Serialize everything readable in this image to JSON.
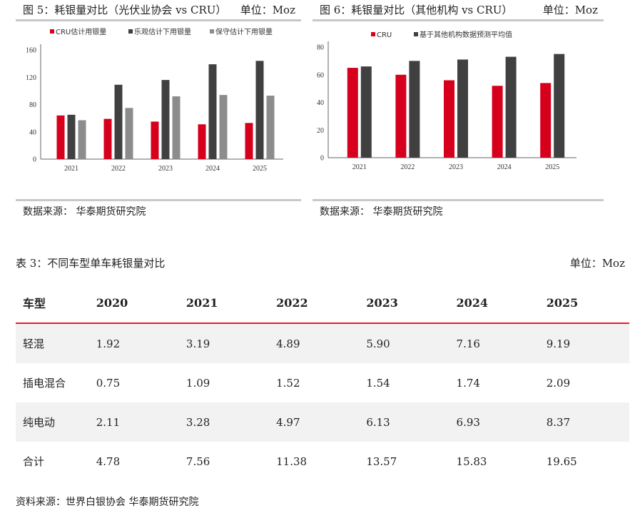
{
  "figure5": {
    "title": "图 5：耗银量对比（光伏业协会 vs CRU）",
    "unit": "单位：Moz",
    "source": "数据来源：  华泰期货研究院"
  },
  "figure6": {
    "title": "图 6：耗银量对比（其他机构 vs CRU）",
    "unit": "单位：Moz",
    "source": "数据来源：  华泰期货研究院"
  },
  "chart_data": [
    {
      "type": "bar",
      "categories": [
        "2021",
        "2022",
        "2023",
        "2024",
        "2025"
      ],
      "series": [
        {
          "name": "CRU估计用银量",
          "values": [
            64,
            59,
            55,
            51,
            53
          ]
        },
        {
          "name": "乐观估计下用银量",
          "values": [
            65,
            109,
            116,
            139,
            144
          ]
        },
        {
          "name": "保守估计下用银量",
          "values": [
            57,
            75,
            92,
            94,
            93
          ]
        }
      ],
      "colors": [
        "#d6001c",
        "#404040",
        "#8c8c8c"
      ],
      "yticks": [
        0,
        40,
        80,
        120,
        160
      ],
      "ylim": [
        0,
        160
      ],
      "legend_position": "top"
    },
    {
      "type": "bar",
      "categories": [
        "2021",
        "2022",
        "2023",
        "2024",
        "2025"
      ],
      "series": [
        {
          "name": "CRU",
          "values": [
            65,
            60,
            56,
            52,
            54
          ]
        },
        {
          "name": "基于其他机构数据预测平均值",
          "values": [
            66,
            70,
            71,
            73,
            75
          ]
        }
      ],
      "colors": [
        "#d6001c",
        "#404040"
      ],
      "yticks": [
        0,
        20,
        40,
        60,
        80
      ],
      "ylim": [
        0,
        80
      ],
      "legend_position": "top"
    }
  ],
  "table": {
    "title": "表 3：不同车型单车耗银量对比",
    "unit": "单位：Moz",
    "headers": [
      "车型",
      "2020",
      "2021",
      "2022",
      "2023",
      "2024",
      "2025"
    ],
    "rows": [
      [
        "轻混",
        "1.92",
        "3.19",
        "4.89",
        "5.90",
        "7.16",
        "9.19"
      ],
      [
        "插电混合",
        "0.75",
        "1.09",
        "1.52",
        "1.54",
        "1.74",
        "2.09"
      ],
      [
        "纯电动",
        "2.11",
        "3.28",
        "4.97",
        "6.13",
        "6.93",
        "8.37"
      ],
      [
        "合计",
        "4.78",
        "7.56",
        "11.38",
        "13.57",
        "15.83",
        "19.65"
      ]
    ],
    "source": "资料来源：世界白银协会 华泰期货研究院"
  }
}
